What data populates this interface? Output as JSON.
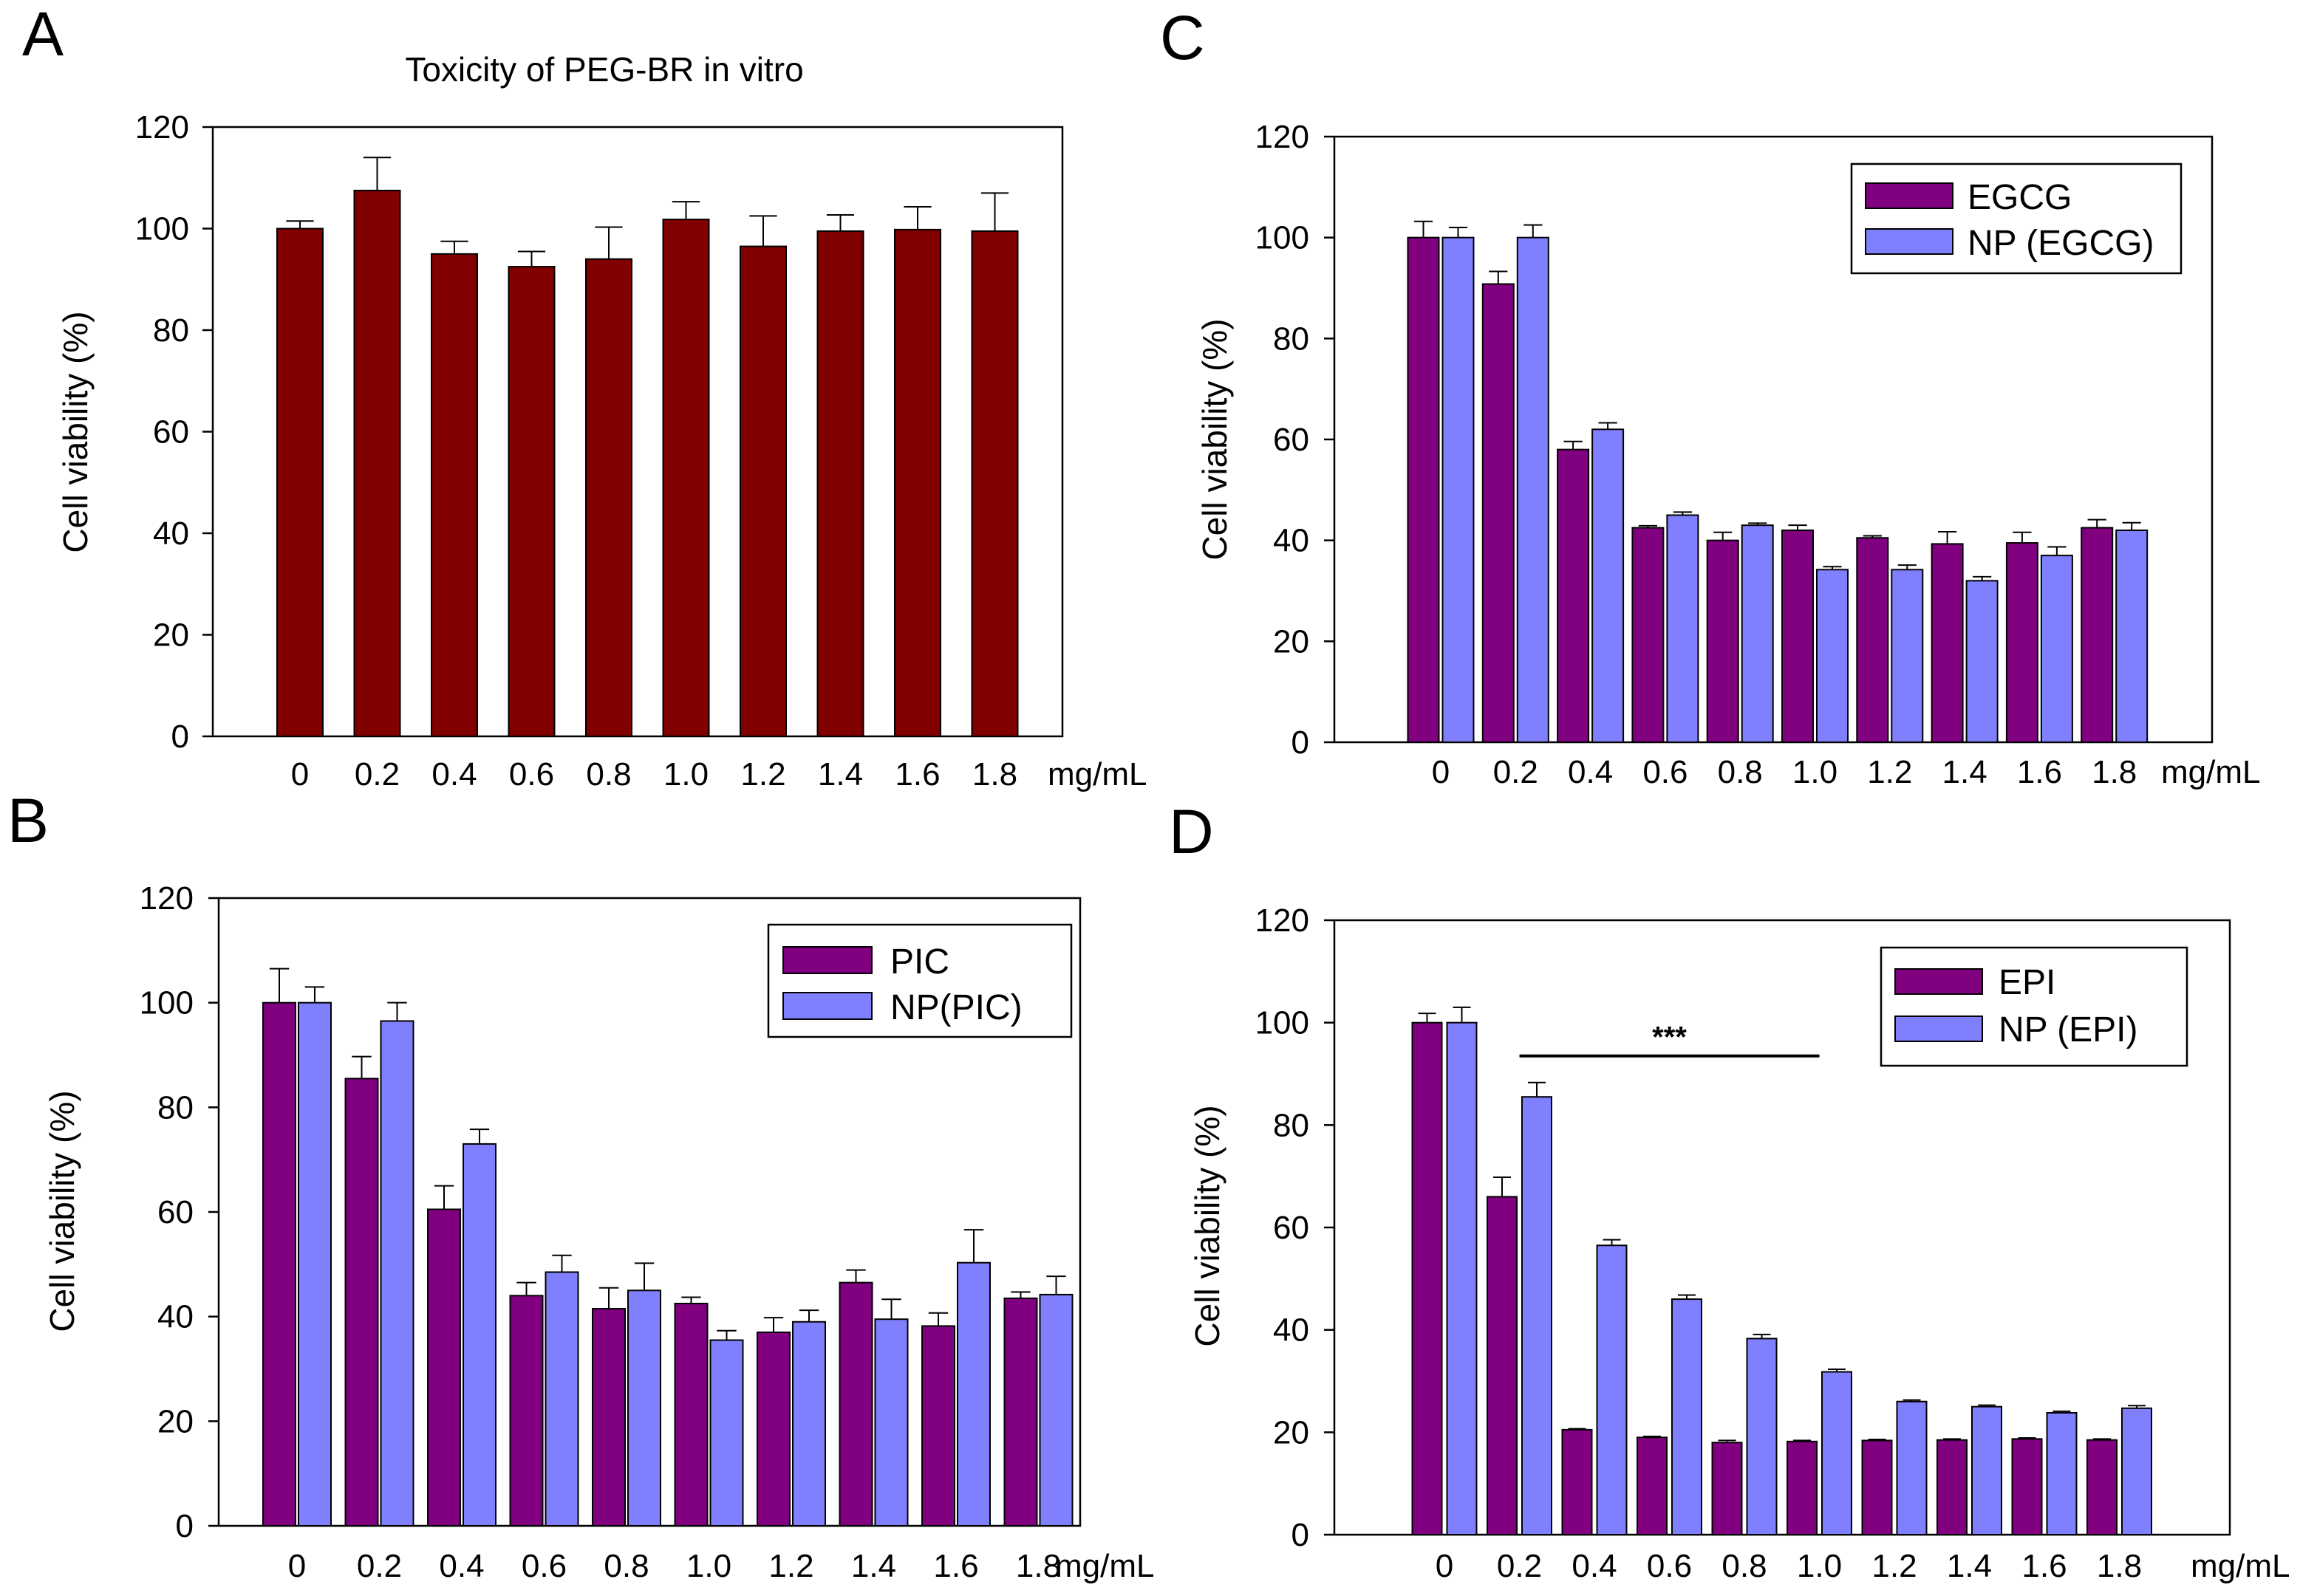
{
  "colors": {
    "panel_a_bar": "#800000",
    "treatment_bar": "#800080",
    "nanoparticle_bar": "#8080FF"
  },
  "chart_data": [
    {
      "panel": "A",
      "type": "bar",
      "title": "Toxicity of PEG-BR in vitro",
      "xlabel": "",
      "ylabel": "Cell viability (%)",
      "x_unit": "mg/mL",
      "ylim": [
        0,
        120
      ],
      "yticks": [
        "0",
        "20",
        "40",
        "60",
        "80",
        "100",
        "120"
      ],
      "categories": [
        "0",
        "0.2",
        "0.4",
        "0.6",
        "0.8",
        "1.0",
        "1.2",
        "1.4",
        "1.6",
        "1.8"
      ],
      "series": [
        {
          "name": "PEG-BR",
          "color": "#800000",
          "values": [
            100,
            107.5,
            95,
            92.5,
            94,
            101.8,
            96.5,
            99.5,
            99.8,
            99.5
          ],
          "errors": [
            1.5,
            6.5,
            2.5,
            3,
            6.3,
            3.5,
            6,
            3.2,
            4.5,
            7.5
          ]
        }
      ],
      "legend": []
    },
    {
      "panel": "B",
      "type": "bar",
      "title": "",
      "xlabel": "",
      "ylabel": "Cell viability (%)",
      "x_unit": "mg/mL",
      "ylim": [
        0,
        120
      ],
      "yticks": [
        "0",
        "20",
        "40",
        "60",
        "80",
        "100",
        "120"
      ],
      "categories": [
        "0",
        "0.2",
        "0.4",
        "0.6",
        "0.8",
        "1.0",
        "1.2",
        "1.4",
        "1.6",
        "1.8"
      ],
      "series": [
        {
          "name": "PIC",
          "color": "#800080",
          "values": [
            100,
            85.5,
            60.5,
            44,
            41.5,
            42.5,
            37,
            46.5,
            38.2,
            43.5
          ],
          "errors": [
            6.5,
            4.2,
            4.5,
            2.5,
            4,
            1.2,
            2.8,
            2.4,
            2.5,
            1.2
          ]
        },
        {
          "name": "NP(PIC)",
          "color": "#8080FF",
          "values": [
            100,
            96.5,
            73,
            48.5,
            45,
            35.5,
            39,
            39.5,
            50.3,
            44.2
          ],
          "errors": [
            3,
            3.5,
            2.8,
            3.2,
            5.2,
            1.8,
            2.2,
            3.8,
            6.3,
            3.5
          ]
        }
      ],
      "legend": [
        "PIC",
        "NP(PIC)"
      ]
    },
    {
      "panel": "C",
      "type": "bar",
      "title": "",
      "xlabel": "",
      "ylabel": "Cell viability (%)",
      "x_unit": "mg/mL",
      "ylim": [
        0,
        120
      ],
      "yticks": [
        "0",
        "20",
        "40",
        "60",
        "80",
        "100",
        "120"
      ],
      "categories": [
        "0",
        "0.2",
        "0.4",
        "0.6",
        "0.8",
        "1.0",
        "1.2",
        "1.4",
        "1.6",
        "1.8"
      ],
      "series": [
        {
          "name": "EGCG",
          "color": "#800080",
          "values": [
            100,
            90.8,
            58,
            42.5,
            40,
            42,
            40.5,
            39.3,
            39.5,
            42.5
          ],
          "errors": [
            3.2,
            2.5,
            1.6,
            0.4,
            1.6,
            1,
            0.4,
            2.4,
            2.1,
            1.6
          ]
        },
        {
          "name": "NP (EGCG)",
          "color": "#8080FF",
          "values": [
            100,
            100,
            62,
            45,
            43,
            34.2,
            34.2,
            32,
            37,
            42
          ],
          "errors": [
            2,
            2.5,
            1.3,
            0.6,
            0.4,
            0.6,
            0.9,
            0.8,
            1.7,
            1.5
          ]
        }
      ],
      "legend": [
        "EGCG",
        "NP (EGCG)"
      ]
    },
    {
      "panel": "D",
      "type": "bar",
      "title": "",
      "xlabel": "",
      "ylabel": "Cell viability (%)",
      "x_unit": "mg/mL",
      "ylim": [
        0,
        120
      ],
      "yticks": [
        "0",
        "20",
        "40",
        "60",
        "80",
        "100",
        "120"
      ],
      "categories": [
        "0",
        "0.2",
        "0.4",
        "0.6",
        "0.8",
        "1.0",
        "1.2",
        "1.4",
        "1.6",
        "1.8"
      ],
      "series": [
        {
          "name": "EPI",
          "color": "#800080",
          "values": [
            100,
            66,
            20.5,
            19,
            18,
            18.2,
            18.4,
            18.5,
            18.7,
            18.5
          ],
          "errors": [
            1.8,
            3.8,
            0.2,
            0.2,
            0.4,
            0.2,
            0.2,
            0.2,
            0.2,
            0.2
          ]
        },
        {
          "name": "NP (EPI)",
          "color": "#8080FF",
          "values": [
            100,
            85.5,
            56.5,
            46,
            38.3,
            31.8,
            26,
            25,
            23.8,
            24.7
          ],
          "errors": [
            3,
            2.8,
            1.1,
            0.8,
            0.8,
            0.5,
            0.3,
            0.3,
            0.3,
            0.5
          ]
        }
      ],
      "legend": [
        "EPI",
        "NP (EPI)"
      ],
      "significance": {
        "label": "***",
        "from_category": "0.2",
        "to_category": "1.0",
        "at_value": 93.5
      }
    }
  ]
}
